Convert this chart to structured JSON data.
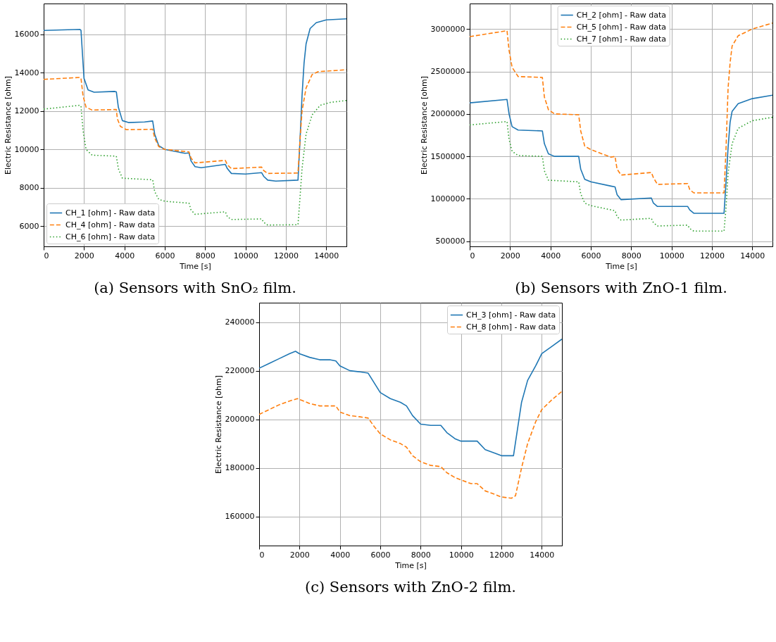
{
  "chart_data": [
    {
      "type": "line",
      "title": "(a) Sensors with SnO₂ film.",
      "xlabel": "Time [s]",
      "ylabel": "Electric Resistance [ohm]",
      "xlim": [
        0,
        15000
      ],
      "xticks": [
        0,
        2000,
        4000,
        6000,
        8000,
        10000,
        12000,
        14000
      ],
      "ylim": [
        4950,
        17600
      ],
      "yticks": [
        6000,
        8000,
        10000,
        12000,
        14000,
        16000
      ],
      "grid": true,
      "legend": "bottom left",
      "series": [
        {
          "name": "CH_1 [ohm] - Raw data",
          "color": "#1f77b4",
          "line_style": "solid",
          "x": [
            0,
            1800,
            1850,
            1950,
            2000,
            2200,
            2500,
            3500,
            3600,
            3700,
            3900,
            4200,
            5000,
            5400,
            5500,
            5700,
            6000,
            7000,
            7200,
            7300,
            7500,
            7800,
            9000,
            9100,
            9300,
            10000,
            10800,
            10900,
            11100,
            11500,
            12600,
            12700,
            12800,
            12900,
            13000,
            13200,
            13500,
            14000,
            15000
          ],
          "values": [
            16200,
            16250,
            16200,
            14500,
            13700,
            13100,
            12980,
            13020,
            13000,
            12200,
            11500,
            11400,
            11430,
            11480,
            10800,
            10200,
            10000,
            9800,
            9820,
            9400,
            9100,
            9050,
            9220,
            9000,
            8750,
            8720,
            8790,
            8600,
            8400,
            8350,
            8400,
            10500,
            12800,
            14500,
            15500,
            16300,
            16600,
            16750,
            16800
          ]
        },
        {
          "name": "CH_4 [ohm] - Raw data",
          "color": "#ff7f0e",
          "line_style": "dashed",
          "x": [
            0,
            1800,
            1850,
            1950,
            2100,
            2400,
            3600,
            3650,
            3800,
            4100,
            5400,
            5500,
            5700,
            6000,
            7200,
            7300,
            7500,
            9000,
            9100,
            9300,
            10800,
            10900,
            11100,
            12600,
            12700,
            12800,
            13000,
            13300,
            13600,
            15000
          ],
          "values": [
            13650,
            13750,
            13700,
            12800,
            12200,
            12050,
            12080,
            11600,
            11200,
            11030,
            11050,
            10600,
            10150,
            10000,
            9870,
            9550,
            9300,
            9430,
            9200,
            9000,
            9080,
            8900,
            8750,
            8770,
            10500,
            12000,
            13200,
            13900,
            14050,
            14150
          ]
        },
        {
          "name": "CH_6 [ohm] - Raw data",
          "color": "#2ca02c",
          "line_style": "dotted",
          "x": [
            0,
            1800,
            1850,
            1950,
            2100,
            2400,
            3600,
            3700,
            3900,
            5400,
            5500,
            5700,
            6000,
            7200,
            7300,
            7500,
            9000,
            9100,
            9300,
            10800,
            10900,
            11100,
            12600,
            12700,
            12800,
            13000,
            13300,
            13700,
            14200,
            15000
          ],
          "values": [
            12100,
            12300,
            12250,
            11000,
            10000,
            9700,
            9650,
            9000,
            8500,
            8420,
            7800,
            7400,
            7300,
            7200,
            6850,
            6620,
            6750,
            6500,
            6350,
            6380,
            6200,
            6060,
            6080,
            7500,
            9000,
            10800,
            11800,
            12300,
            12450,
            12550
          ]
        }
      ]
    },
    {
      "type": "line",
      "title": "(b) Sensors with ZnO-1 film.",
      "xlabel": "Time [s]",
      "ylabel": "Electric Resistance [ohm]",
      "xlim": [
        0,
        15000
      ],
      "xticks": [
        0,
        2000,
        4000,
        6000,
        8000,
        10000,
        12000,
        14000
      ],
      "ylim": [
        440000,
        3300000
      ],
      "yticks": [
        500000,
        1000000,
        1500000,
        2000000,
        2500000,
        3000000
      ],
      "grid": true,
      "legend": "top",
      "series": [
        {
          "name": "CH_2 [ohm] - Raw data",
          "color": "#1f77b4",
          "line_style": "solid",
          "x": [
            0,
            1850,
            1950,
            2100,
            2400,
            3600,
            3700,
            3900,
            4200,
            5400,
            5500,
            5700,
            6000,
            7000,
            7200,
            7300,
            7500,
            9000,
            9100,
            9300,
            10800,
            10900,
            11100,
            12600,
            12700,
            12800,
            12900,
            13000,
            13300,
            14000,
            15000
          ],
          "values": [
            2130000,
            2170000,
            2000000,
            1850000,
            1810000,
            1800000,
            1650000,
            1530000,
            1500000,
            1500000,
            1350000,
            1230000,
            1200000,
            1150000,
            1140000,
            1050000,
            990000,
            1010000,
            950000,
            910000,
            910000,
            870000,
            830000,
            830000,
            1200000,
            1600000,
            1900000,
            2030000,
            2120000,
            2180000,
            2220000
          ]
        },
        {
          "name": "CH_5 [ohm] - Raw data",
          "color": "#ff7f0e",
          "line_style": "dashed",
          "x": [
            0,
            1850,
            1950,
            2100,
            2400,
            3600,
            3700,
            3900,
            4200,
            5400,
            5500,
            5700,
            6000,
            7000,
            7200,
            7300,
            7500,
            9000,
            9100,
            9300,
            10800,
            10900,
            11100,
            12600,
            12700,
            12800,
            12900,
            13000,
            13300,
            14000,
            15000
          ],
          "values": [
            2910000,
            2980000,
            2750000,
            2550000,
            2440000,
            2430000,
            2200000,
            2050000,
            2000000,
            1990000,
            1800000,
            1620000,
            1580000,
            1490000,
            1500000,
            1350000,
            1280000,
            1310000,
            1250000,
            1170000,
            1180000,
            1110000,
            1070000,
            1070000,
            1600000,
            2300000,
            2600000,
            2800000,
            2920000,
            3000000,
            3070000
          ]
        },
        {
          "name": "CH_7 [ohm] - Raw data",
          "color": "#2ca02c",
          "line_style": "dotted",
          "x": [
            0,
            1850,
            1950,
            2100,
            2400,
            3600,
            3700,
            3900,
            5400,
            5500,
            5700,
            6000,
            7000,
            7200,
            7300,
            7500,
            9000,
            9100,
            9300,
            10800,
            10900,
            11100,
            12600,
            12700,
            12800,
            13000,
            13300,
            14000,
            15000
          ],
          "values": [
            1870000,
            1910000,
            1700000,
            1560000,
            1510000,
            1500000,
            1330000,
            1220000,
            1200000,
            1060000,
            950000,
            920000,
            870000,
            860000,
            790000,
            750000,
            770000,
            720000,
            680000,
            690000,
            650000,
            620000,
            620000,
            900000,
            1300000,
            1650000,
            1830000,
            1920000,
            1960000
          ]
        }
      ]
    },
    {
      "type": "line",
      "title": "(c) Sensors with ZnO-2 film.",
      "xlabel": "Time [s]",
      "ylabel": "Electric Resistance [ohm]",
      "xlim": [
        0,
        15000
      ],
      "xticks": [
        0,
        2000,
        4000,
        6000,
        8000,
        10000,
        12000,
        14000
      ],
      "ylim": [
        148000,
        248000
      ],
      "yticks": [
        160000,
        180000,
        200000,
        220000,
        240000
      ],
      "grid": true,
      "legend": "top right",
      "series": [
        {
          "name": "CH_3 [ohm] - Raw data",
          "color": "#1f77b4",
          "line_style": "solid",
          "x": [
            0,
            500,
            1000,
            1500,
            1800,
            2000,
            2500,
            3000,
            3500,
            3800,
            4000,
            4500,
            5000,
            5400,
            5700,
            6000,
            6500,
            7000,
            7300,
            7600,
            8000,
            8500,
            9000,
            9300,
            9700,
            10000,
            10500,
            10800,
            11200,
            11700,
            12000,
            12500,
            12600,
            12800,
            13000,
            13300,
            13700,
            14000,
            14500,
            15000
          ],
          "values": [
            221000,
            223000,
            225000,
            227000,
            228000,
            227000,
            225500,
            224500,
            224500,
            224000,
            222000,
            220000,
            219500,
            219000,
            215000,
            211000,
            208500,
            207000,
            205500,
            201500,
            198000,
            197500,
            197500,
            194500,
            192000,
            191000,
            191000,
            191000,
            187500,
            186000,
            185000,
            185000,
            185000,
            196000,
            207000,
            216000,
            222000,
            227000,
            230000,
            233000
          ]
        },
        {
          "name": "CH_8 [ohm] - Raw data",
          "color": "#ff7f0e",
          "line_style": "dashed",
          "x": [
            0,
            500,
            1000,
            1500,
            1900,
            2500,
            3000,
            3500,
            3800,
            4000,
            4500,
            5000,
            5400,
            5700,
            6000,
            6500,
            7000,
            7300,
            7600,
            8000,
            8500,
            9000,
            9300,
            9700,
            10000,
            10500,
            10800,
            11200,
            11700,
            12000,
            12500,
            12700,
            13000,
            13300,
            13700,
            14000,
            14500,
            15000
          ],
          "values": [
            202000,
            204000,
            206000,
            207500,
            208500,
            206500,
            205500,
            205500,
            205500,
            203000,
            201500,
            201000,
            200500,
            197000,
            194000,
            191500,
            190000,
            188500,
            185000,
            182500,
            181000,
            180500,
            178000,
            176000,
            175000,
            173500,
            173500,
            170500,
            169000,
            168000,
            167500,
            168500,
            180000,
            190000,
            199000,
            204000,
            208000,
            211500
          ]
        }
      ]
    }
  ]
}
